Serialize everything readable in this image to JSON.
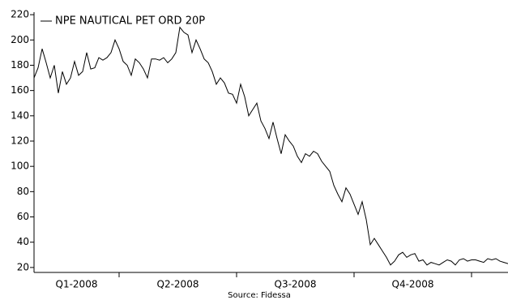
{
  "chart_data": {
    "type": "line",
    "series": [
      {
        "name": "NPE NAUTICAL PET ORD 20P",
        "color": "#000000",
        "values": [
          170,
          178,
          193,
          182,
          170,
          180,
          158,
          175,
          165,
          170,
          183,
          172,
          175,
          190,
          177,
          178,
          186,
          184,
          186,
          190,
          200,
          193,
          183,
          180,
          172,
          185,
          182,
          177,
          170,
          185,
          185,
          184,
          186,
          182,
          185,
          190,
          210,
          206,
          204,
          190,
          200,
          193,
          185,
          182,
          175,
          165,
          170,
          166,
          158,
          157,
          150,
          165,
          155,
          140,
          145,
          150,
          136,
          130,
          122,
          135,
          122,
          110,
          125,
          120,
          116,
          108,
          103,
          110,
          108,
          112,
          110,
          104,
          100,
          96,
          85,
          78,
          72,
          83,
          78,
          70,
          62,
          72,
          58,
          38,
          43,
          38,
          33,
          28,
          22,
          25,
          30,
          32,
          28,
          30,
          31,
          25,
          26,
          22,
          24,
          23,
          22,
          24,
          26,
          25,
          22,
          26,
          27,
          25,
          26,
          26,
          25,
          24,
          27,
          26,
          27,
          25,
          24,
          23
        ]
      }
    ],
    "xlim": [
      0,
      117
    ],
    "xtick_marks": [
      21,
      50,
      79,
      108
    ],
    "xtick_labels": [
      {
        "value": 10.5,
        "label": "Q1-2008"
      },
      {
        "value": 35.5,
        "label": "Q2-2008"
      },
      {
        "value": 64.5,
        "label": "Q3-2008"
      },
      {
        "value": 93.5,
        "label": "Q4-2008"
      }
    ],
    "ylim": [
      18,
      222
    ],
    "yticks": [
      20,
      40,
      60,
      80,
      100,
      120,
      140,
      160,
      180,
      200,
      220
    ],
    "legend": "top-left",
    "source": "Source: Fidessa"
  }
}
